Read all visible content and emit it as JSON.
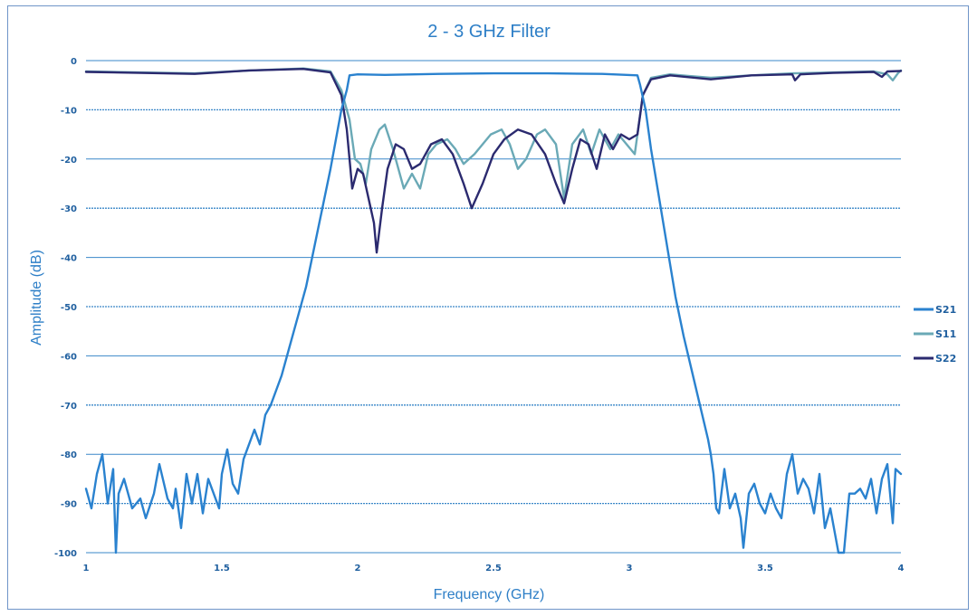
{
  "chart_data": {
    "type": "line",
    "title": "2 - 3 GHz Filter",
    "xlabel": "Frequency (GHz)",
    "ylabel": "Amplitude (dB)",
    "xlim": [
      1,
      4
    ],
    "ylim": [
      -100,
      0
    ],
    "x_ticks": [
      "1",
      "1.5",
      "2",
      "2.5",
      "3",
      "3.5",
      "4"
    ],
    "y_ticks": [
      "0",
      "-10",
      "-20",
      "-30",
      "-40",
      "-50",
      "-60",
      "-70",
      "-80",
      "-90",
      "-100"
    ],
    "grid": "horizontal",
    "legend_position": "right",
    "series": [
      {
        "name": "S21",
        "color": "#2a82cf",
        "points": [
          [
            1.0,
            -87
          ],
          [
            1.02,
            -91
          ],
          [
            1.04,
            -84
          ],
          [
            1.06,
            -80
          ],
          [
            1.08,
            -90
          ],
          [
            1.1,
            -83
          ],
          [
            1.11,
            -100
          ],
          [
            1.12,
            -88
          ],
          [
            1.14,
            -85
          ],
          [
            1.17,
            -91
          ],
          [
            1.2,
            -89
          ],
          [
            1.22,
            -93
          ],
          [
            1.25,
            -88
          ],
          [
            1.27,
            -82
          ],
          [
            1.3,
            -89
          ],
          [
            1.32,
            -91
          ],
          [
            1.33,
            -87
          ],
          [
            1.35,
            -95
          ],
          [
            1.37,
            -84
          ],
          [
            1.39,
            -90
          ],
          [
            1.41,
            -84
          ],
          [
            1.43,
            -92
          ],
          [
            1.45,
            -85
          ],
          [
            1.47,
            -88
          ],
          [
            1.49,
            -91
          ],
          [
            1.5,
            -84
          ],
          [
            1.52,
            -79
          ],
          [
            1.54,
            -86
          ],
          [
            1.56,
            -88
          ],
          [
            1.58,
            -81
          ],
          [
            1.6,
            -78
          ],
          [
            1.62,
            -75
          ],
          [
            1.64,
            -78
          ],
          [
            1.66,
            -72
          ],
          [
            1.68,
            -70
          ],
          [
            1.7,
            -67
          ],
          [
            1.72,
            -64
          ],
          [
            1.75,
            -58
          ],
          [
            1.78,
            -52
          ],
          [
            1.81,
            -46
          ],
          [
            1.84,
            -38
          ],
          [
            1.87,
            -30
          ],
          [
            1.9,
            -22
          ],
          [
            1.92,
            -16
          ],
          [
            1.94,
            -10
          ],
          [
            1.96,
            -6
          ],
          [
            1.97,
            -3
          ],
          [
            2.0,
            -2.8
          ],
          [
            2.1,
            -2.9
          ],
          [
            2.3,
            -2.7
          ],
          [
            2.5,
            -2.6
          ],
          [
            2.7,
            -2.6
          ],
          [
            2.9,
            -2.7
          ],
          [
            3.03,
            -3.0
          ],
          [
            3.04,
            -5
          ],
          [
            3.06,
            -10
          ],
          [
            3.08,
            -18
          ],
          [
            3.11,
            -28
          ],
          [
            3.14,
            -38
          ],
          [
            3.17,
            -48
          ],
          [
            3.2,
            -56
          ],
          [
            3.23,
            -63
          ],
          [
            3.26,
            -70
          ],
          [
            3.29,
            -77
          ],
          [
            3.3,
            -80
          ],
          [
            3.31,
            -84
          ],
          [
            3.32,
            -91
          ],
          [
            3.33,
            -92
          ],
          [
            3.35,
            -83
          ],
          [
            3.37,
            -91
          ],
          [
            3.39,
            -88
          ],
          [
            3.41,
            -93
          ],
          [
            3.42,
            -99
          ],
          [
            3.44,
            -88
          ],
          [
            3.46,
            -86
          ],
          [
            3.48,
            -90
          ],
          [
            3.5,
            -92
          ],
          [
            3.52,
            -88
          ],
          [
            3.54,
            -91
          ],
          [
            3.56,
            -93
          ],
          [
            3.58,
            -84
          ],
          [
            3.6,
            -80
          ],
          [
            3.62,
            -88
          ],
          [
            3.64,
            -85
          ],
          [
            3.66,
            -87
          ],
          [
            3.68,
            -92
          ],
          [
            3.7,
            -84
          ],
          [
            3.72,
            -95
          ],
          [
            3.74,
            -91
          ],
          [
            3.76,
            -97
          ],
          [
            3.77,
            -100
          ],
          [
            3.79,
            -100
          ],
          [
            3.81,
            -88
          ],
          [
            3.83,
            -88
          ],
          [
            3.85,
            -87
          ],
          [
            3.87,
            -89
          ],
          [
            3.89,
            -85
          ],
          [
            3.91,
            -92
          ],
          [
            3.93,
            -85
          ],
          [
            3.95,
            -82
          ],
          [
            3.97,
            -94
          ],
          [
            3.98,
            -83
          ],
          [
            4.0,
            -84
          ]
        ]
      },
      {
        "name": "S11",
        "color": "#6aa9b6",
        "points": [
          [
            1.0,
            -2.2
          ],
          [
            1.2,
            -2.4
          ],
          [
            1.4,
            -2.6
          ],
          [
            1.6,
            -2.0
          ],
          [
            1.8,
            -1.6
          ],
          [
            1.9,
            -2.2
          ],
          [
            1.94,
            -6
          ],
          [
            1.97,
            -12
          ],
          [
            1.99,
            -20
          ],
          [
            2.01,
            -21
          ],
          [
            2.03,
            -25
          ],
          [
            2.05,
            -18
          ],
          [
            2.08,
            -14
          ],
          [
            2.1,
            -13
          ],
          [
            2.13,
            -18
          ],
          [
            2.17,
            -26
          ],
          [
            2.2,
            -23
          ],
          [
            2.23,
            -26
          ],
          [
            2.26,
            -19
          ],
          [
            2.29,
            -17
          ],
          [
            2.33,
            -16
          ],
          [
            2.36,
            -18
          ],
          [
            2.39,
            -21
          ],
          [
            2.43,
            -19
          ],
          [
            2.46,
            -17
          ],
          [
            2.49,
            -15
          ],
          [
            2.53,
            -14
          ],
          [
            2.56,
            -17
          ],
          [
            2.59,
            -22
          ],
          [
            2.62,
            -20
          ],
          [
            2.66,
            -15
          ],
          [
            2.69,
            -14
          ],
          [
            2.73,
            -17
          ],
          [
            2.76,
            -28
          ],
          [
            2.79,
            -17
          ],
          [
            2.83,
            -14
          ],
          [
            2.86,
            -19
          ],
          [
            2.89,
            -14
          ],
          [
            2.93,
            -18
          ],
          [
            2.96,
            -15
          ],
          [
            2.99,
            -17
          ],
          [
            3.02,
            -19
          ],
          [
            3.05,
            -7
          ],
          [
            3.08,
            -3.5
          ],
          [
            3.15,
            -2.8
          ],
          [
            3.3,
            -3.5
          ],
          [
            3.45,
            -3.0
          ],
          [
            3.6,
            -2.6
          ],
          [
            3.75,
            -2.4
          ],
          [
            3.9,
            -2.2
          ],
          [
            3.95,
            -2.8
          ],
          [
            3.97,
            -4
          ],
          [
            3.99,
            -2.5
          ],
          [
            4.0,
            -2.0
          ]
        ]
      },
      {
        "name": "S22",
        "color": "#2b2a6f",
        "points": [
          [
            1.0,
            -2.3
          ],
          [
            1.2,
            -2.5
          ],
          [
            1.4,
            -2.7
          ],
          [
            1.6,
            -2.0
          ],
          [
            1.8,
            -1.7
          ],
          [
            1.9,
            -2.4
          ],
          [
            1.94,
            -7
          ],
          [
            1.96,
            -14
          ],
          [
            1.98,
            -26
          ],
          [
            2.0,
            -22
          ],
          [
            2.02,
            -23
          ],
          [
            2.04,
            -28
          ],
          [
            2.06,
            -33
          ],
          [
            2.07,
            -39
          ],
          [
            2.09,
            -30
          ],
          [
            2.11,
            -22
          ],
          [
            2.14,
            -17
          ],
          [
            2.17,
            -18
          ],
          [
            2.2,
            -22
          ],
          [
            2.23,
            -21
          ],
          [
            2.27,
            -17
          ],
          [
            2.31,
            -16
          ],
          [
            2.35,
            -19
          ],
          [
            2.39,
            -25
          ],
          [
            2.42,
            -30
          ],
          [
            2.46,
            -25
          ],
          [
            2.5,
            -19
          ],
          [
            2.54,
            -16
          ],
          [
            2.59,
            -14
          ],
          [
            2.64,
            -15
          ],
          [
            2.69,
            -19
          ],
          [
            2.73,
            -25
          ],
          [
            2.76,
            -29
          ],
          [
            2.79,
            -22
          ],
          [
            2.82,
            -16
          ],
          [
            2.85,
            -17
          ],
          [
            2.88,
            -22
          ],
          [
            2.91,
            -15
          ],
          [
            2.94,
            -18
          ],
          [
            2.97,
            -15
          ],
          [
            3.0,
            -16
          ],
          [
            3.03,
            -15
          ],
          [
            3.05,
            -7
          ],
          [
            3.08,
            -3.8
          ],
          [
            3.15,
            -3.0
          ],
          [
            3.3,
            -3.8
          ],
          [
            3.45,
            -3.0
          ],
          [
            3.6,
            -2.8
          ],
          [
            3.61,
            -4
          ],
          [
            3.63,
            -2.8
          ],
          [
            3.75,
            -2.5
          ],
          [
            3.9,
            -2.3
          ],
          [
            3.93,
            -3.3
          ],
          [
            3.95,
            -2.2
          ],
          [
            4.0,
            -2.1
          ]
        ]
      }
    ]
  }
}
